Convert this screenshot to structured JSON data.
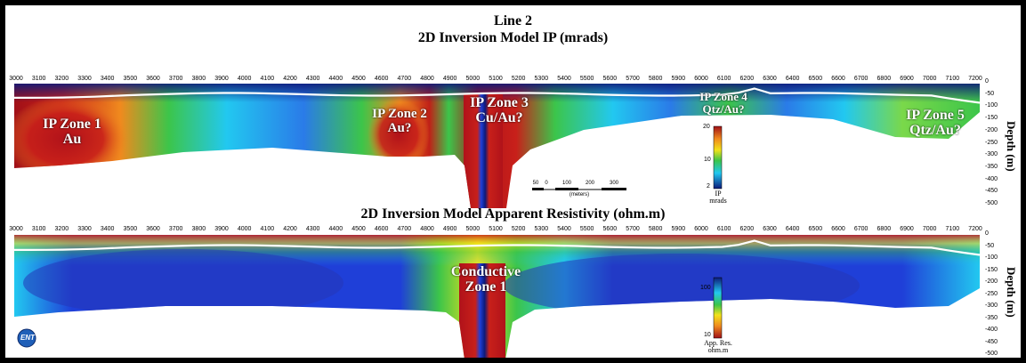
{
  "title_line": "Line 2",
  "title_ip": "2D Inversion Model IP (mrads)",
  "title_res": "2D Inversion Model Apparent Resistivity (ohm.m)",
  "x_ticks": [
    "3000",
    "3100",
    "3200",
    "3300",
    "3400",
    "3500",
    "3600",
    "3700",
    "3800",
    "3900",
    "4000",
    "4100",
    "4200",
    "4300",
    "4400",
    "4500",
    "4600",
    "4700",
    "4800",
    "4900",
    "5000",
    "5100",
    "5200",
    "5300",
    "5400",
    "5500",
    "5600",
    "5700",
    "5800",
    "5900",
    "6000",
    "6100",
    "6200",
    "6300",
    "6400",
    "6500",
    "6600",
    "6700",
    "6800",
    "6900",
    "7000",
    "7100",
    "7200"
  ],
  "depth_ticks": [
    "0",
    "-50",
    "-100",
    "-150",
    "-200",
    "-250",
    "-300",
    "-350",
    "-400",
    "-450",
    "-500"
  ],
  "depth_label": "Depth (m)",
  "ip_zones": [
    {
      "line1": "IP Zone 1",
      "line2": "Au"
    },
    {
      "line1": "IP Zone 2",
      "line2": "Au?"
    },
    {
      "line1": "IP Zone 3",
      "line2": "Cu/Au?"
    },
    {
      "line1": "IP Zone 4",
      "line2": "Qtz/Au?"
    },
    {
      "line1": "IP Zone 5",
      "line2": "Qtz/Au?"
    }
  ],
  "res_zone": {
    "line1": "Conductive",
    "line2": "Zone 1"
  },
  "ip_colorbar": {
    "ticks": [
      "20",
      "10",
      "2"
    ],
    "caption1": "IP",
    "caption2": "mrads"
  },
  "res_colorbar": {
    "ticks": [
      "100",
      "10"
    ],
    "caption1": "App. Res.",
    "caption2": "ohm.m"
  },
  "scale_bar": {
    "ticks": [
      "50",
      "0",
      "100",
      "200",
      "300"
    ],
    "unit": "(meters)"
  },
  "logo_text": "ENT",
  "colors": {
    "high": "#b0121a",
    "orange": "#f08a1e",
    "yellow": "#f2e21a",
    "green": "#3cc54a",
    "cyan": "#22c8f0",
    "blue": "#1f3fd8",
    "navy": "#0d1a7a"
  }
}
